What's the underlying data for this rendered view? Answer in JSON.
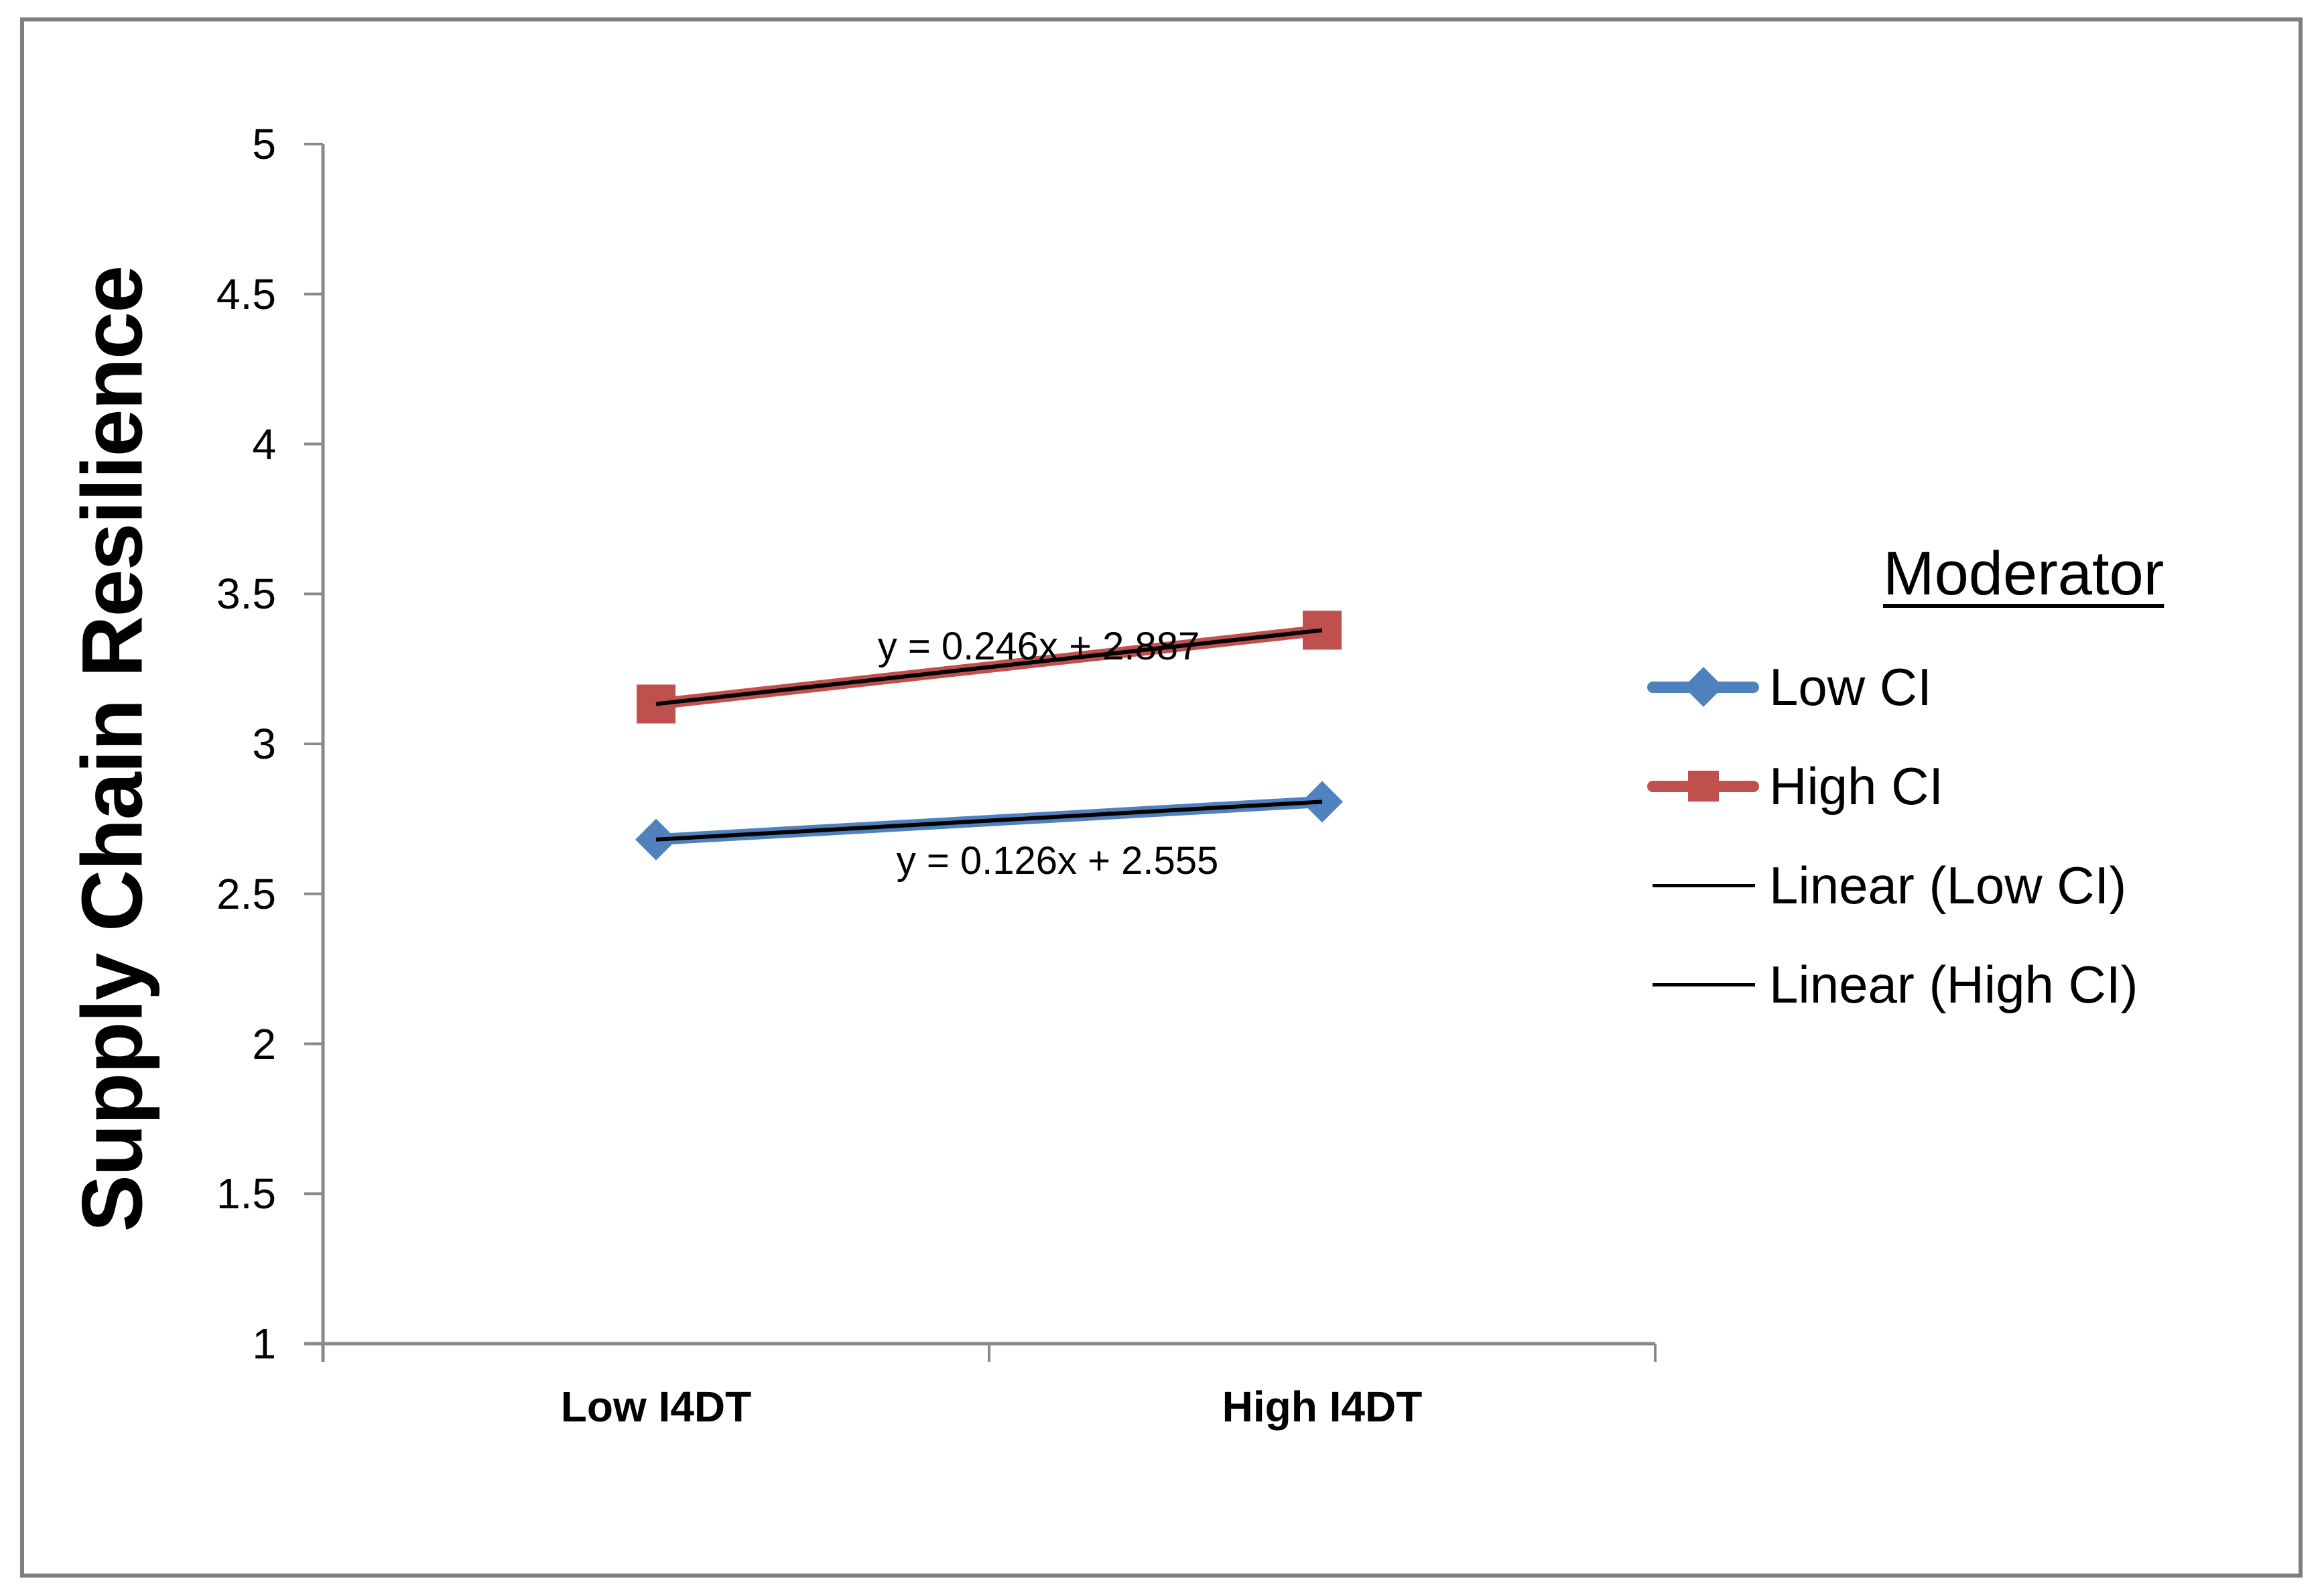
{
  "window": {
    "background": "#ffffff",
    "frame_border_color": "#7f7f7f"
  },
  "chart_data": {
    "type": "line",
    "ylabel": "Supply Chain Resilience",
    "x_categories": [
      "Low I4DT",
      "High I4DT"
    ],
    "x_values": [
      1,
      2
    ],
    "ylim": [
      1,
      5
    ],
    "yticks": [
      1,
      1.5,
      2,
      2.5,
      3,
      3.5,
      4,
      4.5,
      5
    ],
    "grid": false,
    "axis_color": "#898989",
    "text_color": "#000000",
    "series": [
      {
        "name": "Low CI",
        "color": "#4F81BD",
        "marker": "diamond",
        "values": [
          2.681,
          2.807
        ]
      },
      {
        "name": "High CI",
        "color": "#C0504D",
        "marker": "square",
        "values": [
          3.133,
          3.379
        ]
      }
    ],
    "trendlines": [
      {
        "for_series": "Low CI",
        "label": "Linear (Low CI)",
        "equation": "y = 0.126x + 2.555",
        "slope": 0.126,
        "intercept": 2.555,
        "color": "#000000"
      },
      {
        "for_series": "High CI",
        "label": "Linear (High CI)",
        "equation": "y = 0.246x + 2.887",
        "slope": 0.246,
        "intercept": 2.887,
        "color": "#000000"
      }
    ],
    "legend": {
      "title": "Moderator",
      "position": "right",
      "items": [
        {
          "label": "Low CI",
          "swatch": "line-diamond",
          "color": "#4F81BD"
        },
        {
          "label": "High CI",
          "swatch": "line-square",
          "color": "#C0504D"
        },
        {
          "label": "Linear (Low CI)",
          "swatch": "thin-line",
          "color": "#000000"
        },
        {
          "label": "Linear (High CI)",
          "swatch": "thin-line",
          "color": "#000000"
        }
      ]
    }
  }
}
